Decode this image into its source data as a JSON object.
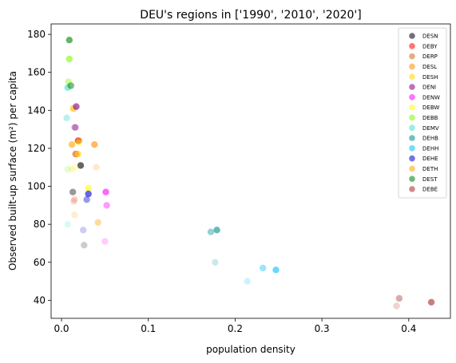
{
  "chart_data": {
    "type": "scatter",
    "title": "DEU's regions in ['1990', '2010', '2020']",
    "xlabel": "population density",
    "ylabel": "Observed built-up surface (m²) per capita",
    "xlim": [
      -0.012,
      0.448
    ],
    "ylim": [
      30.5,
      185.5
    ],
    "xticks": [
      0.0,
      0.1,
      0.2,
      0.3,
      0.4
    ],
    "xtick_labels": [
      "0.0",
      "0.1",
      "0.2",
      "0.3",
      "0.4"
    ],
    "yticks": [
      40,
      60,
      80,
      100,
      120,
      140,
      160,
      180
    ],
    "ytick_labels": [
      "40",
      "60",
      "80",
      "100",
      "120",
      "140",
      "160",
      "180"
    ],
    "grid": false,
    "legend_position": "top-right",
    "opacity_by_year": {
      "1990": 0.2,
      "2010": 0.4,
      "2020": 0.6
    },
    "series": [
      {
        "name": "DESN",
        "color": "#000000",
        "points": [
          {
            "year": "1990",
            "x": 0.026,
            "y": 69
          },
          {
            "year": "2010",
            "x": 0.013,
            "y": 97
          },
          {
            "year": "2020",
            "x": 0.022,
            "y": 111
          }
        ]
      },
      {
        "name": "DEBY",
        "color": "#ff0000",
        "points": [
          {
            "year": "1990",
            "x": 0.015,
            "y": 93
          },
          {
            "year": "2010",
            "x": 0.017,
            "y": 117
          },
          {
            "year": "2020",
            "x": 0.019,
            "y": 124
          }
        ]
      },
      {
        "name": "DERP",
        "color": "#d2691e",
        "points": [
          {
            "year": "1990",
            "x": 0.014,
            "y": 92
          },
          {
            "year": "2010",
            "x": 0.016,
            "y": 117
          },
          {
            "year": "2020",
            "x": 0.02,
            "y": 124
          }
        ]
      },
      {
        "name": "DESL",
        "color": "#ff8c00",
        "points": [
          {
            "year": "1990",
            "x": 0.04,
            "y": 110
          },
          {
            "year": "2010",
            "x": 0.014,
            "y": 141
          },
          {
            "year": "2020",
            "x": 0.038,
            "y": 122
          }
        ]
      },
      {
        "name": "DESH",
        "color": "#ffd700",
        "points": [
          {
            "year": "1990",
            "x": 0.012,
            "y": 109
          },
          {
            "year": "2010",
            "x": 0.013,
            "y": 141
          },
          {
            "year": "2020",
            "x": 0.019,
            "y": 117
          }
        ]
      },
      {
        "name": "DENI",
        "color": "#800080",
        "points": [
          {
            "year": "1990",
            "x": 0.015,
            "y": 131
          },
          {
            "year": "2010",
            "x": 0.016,
            "y": 131
          },
          {
            "year": "2020",
            "x": 0.017,
            "y": 142
          }
        ]
      },
      {
        "name": "DENW",
        "color": "#ff00ff",
        "points": [
          {
            "year": "1990",
            "x": 0.05,
            "y": 71
          },
          {
            "year": "2010",
            "x": 0.052,
            "y": 90
          },
          {
            "year": "2020",
            "x": 0.051,
            "y": 97
          }
        ]
      },
      {
        "name": "DEBW",
        "color": "#ffff00",
        "points": [
          {
            "year": "1990",
            "x": 0.016,
            "y": 110
          },
          {
            "year": "2010",
            "x": 0.02,
            "y": 123
          },
          {
            "year": "2020",
            "x": 0.031,
            "y": 99
          }
        ]
      },
      {
        "name": "DEBB",
        "color": "#7cfc00",
        "points": [
          {
            "year": "1990",
            "x": 0.007,
            "y": 109
          },
          {
            "year": "2010",
            "x": 0.008,
            "y": 155
          },
          {
            "year": "2020",
            "x": 0.009,
            "y": 167
          }
        ]
      },
      {
        "name": "DEMV",
        "color": "#40e0d0",
        "points": [
          {
            "year": "1990",
            "x": 0.007,
            "y": 80
          },
          {
            "year": "2010",
            "x": 0.006,
            "y": 136
          },
          {
            "year": "2020",
            "x": 0.007,
            "y": 152
          }
        ]
      },
      {
        "name": "DEHB",
        "color": "#008b8b",
        "points": [
          {
            "year": "1990",
            "x": 0.177,
            "y": 60
          },
          {
            "year": "2010",
            "x": 0.172,
            "y": 76
          },
          {
            "year": "2020",
            "x": 0.179,
            "y": 77
          }
        ]
      },
      {
        "name": "DEHH",
        "color": "#00bfff",
        "points": [
          {
            "year": "1990",
            "x": 0.214,
            "y": 50
          },
          {
            "year": "2010",
            "x": 0.232,
            "y": 57
          },
          {
            "year": "2020",
            "x": 0.247,
            "y": 56
          }
        ]
      },
      {
        "name": "DEHE",
        "color": "#0000cd",
        "points": [
          {
            "year": "1990",
            "x": 0.025,
            "y": 77
          },
          {
            "year": "2010",
            "x": 0.029,
            "y": 93
          },
          {
            "year": "2020",
            "x": 0.031,
            "y": 96
          }
        ]
      },
      {
        "name": "DETH",
        "color": "#ffa500",
        "points": [
          {
            "year": "1990",
            "x": 0.015,
            "y": 85
          },
          {
            "year": "2010",
            "x": 0.042,
            "y": 81
          },
          {
            "year": "2020",
            "x": 0.012,
            "y": 122
          }
        ]
      },
      {
        "name": "DEST",
        "color": "#008000",
        "points": [
          {
            "year": "1990",
            "x": 0.01,
            "y": 153
          },
          {
            "year": "2010",
            "x": 0.011,
            "y": 153
          },
          {
            "year": "2020",
            "x": 0.009,
            "y": 177
          }
        ]
      },
      {
        "name": "DEBE",
        "color": "#a52a2a",
        "points": [
          {
            "year": "1990",
            "x": 0.386,
            "y": 37
          },
          {
            "year": "2010",
            "x": 0.389,
            "y": 41
          },
          {
            "year": "2020",
            "x": 0.426,
            "y": 39
          }
        ]
      }
    ]
  }
}
